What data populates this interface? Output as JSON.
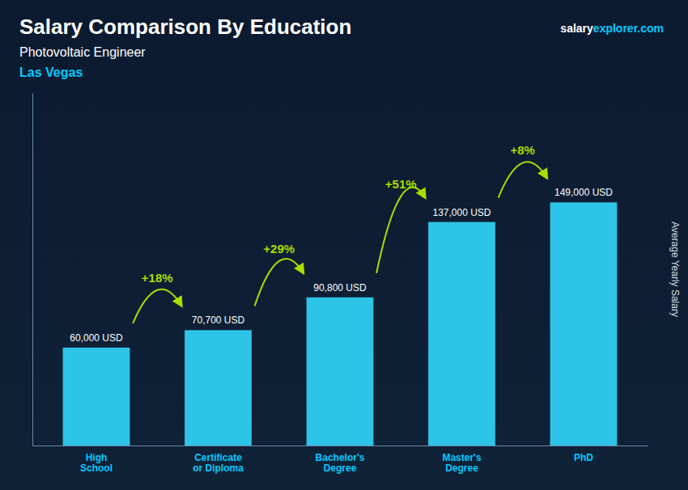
{
  "chart_data": {
    "type": "bar",
    "title": "Salary Comparison By Education",
    "subtitle": "Photovoltaic Engineer",
    "location": "Las Vegas",
    "site": [
      "salary",
      "explorer.com"
    ],
    "ylabel": "Average Yearly Salary",
    "categories": [
      "High\nSchool",
      "Certificate\nor Diploma",
      "Bachelor's\nDegree",
      "Master's\nDegree",
      "PhD"
    ],
    "values": [
      60000,
      70700,
      90800,
      137000,
      149000
    ],
    "value_labels": [
      "60,000 USD",
      "70,700 USD",
      "90,800 USD",
      "137,000 USD",
      "149,000 USD"
    ],
    "data_labels": true,
    "color": "#2ec4e8",
    "annotations": [
      {
        "text": "+18%",
        "color": "#aadd00"
      },
      {
        "text": "+29%",
        "color": "#aadd00"
      },
      {
        "text": "+51%",
        "color": "#aadd00"
      },
      {
        "text": "+8%",
        "color": "#aadd00"
      }
    ],
    "ylim": [
      0,
      216050
    ],
    "tick_labels": "x",
    "grid": false
  }
}
